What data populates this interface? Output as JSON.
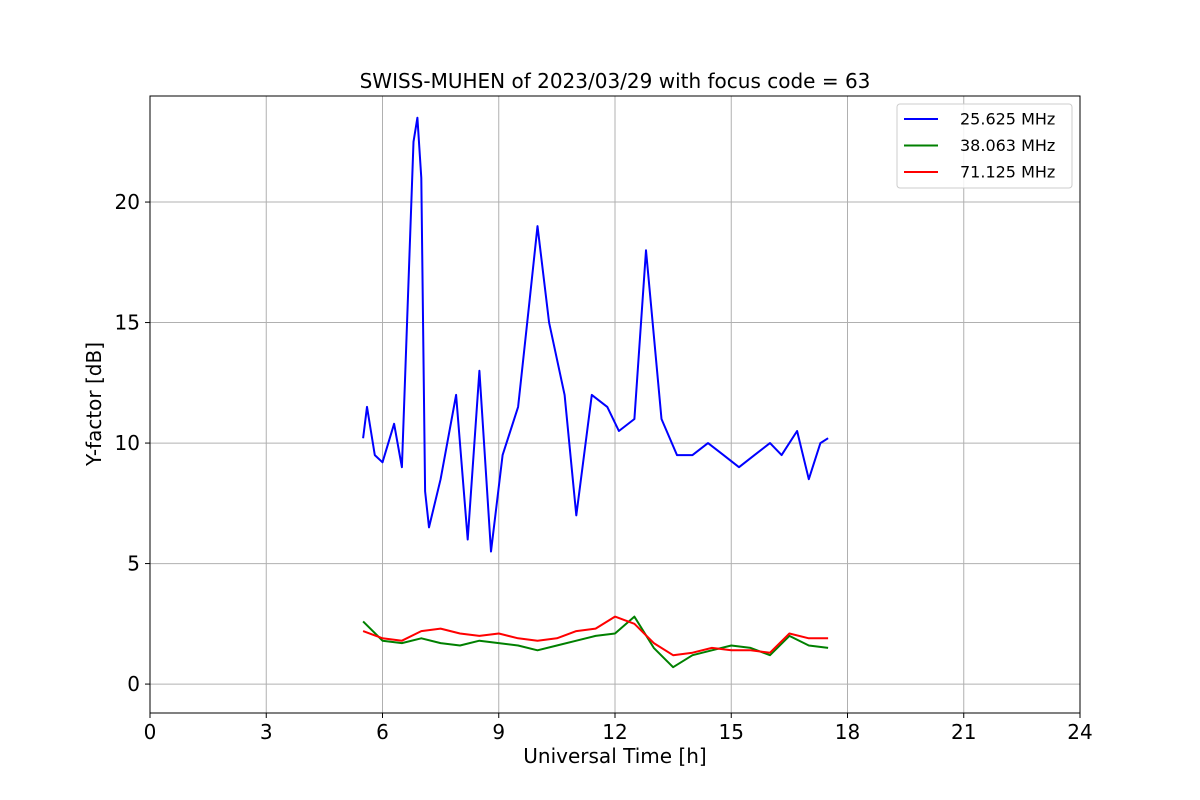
{
  "chart_data": {
    "type": "line",
    "title": "SWISS-MUHEN of 2023/03/29 with focus code = 63",
    "xlabel": "Universal Time [h]",
    "ylabel": "Y-factor [dB]",
    "xlim": [
      0,
      24
    ],
    "ylim": [
      -1.2,
      24.4
    ],
    "xticks": [
      0,
      3,
      6,
      9,
      12,
      15,
      18,
      21,
      24
    ],
    "yticks": [
      0,
      5,
      10,
      15,
      20
    ],
    "grid": true,
    "legend_position": "top-right",
    "series": [
      {
        "name": "25.625 MHz",
        "color": "#0000ff",
        "x": [
          5.5,
          5.6,
          5.8,
          6.0,
          6.3,
          6.5,
          6.8,
          6.9,
          7.0,
          7.1,
          7.2,
          7.5,
          7.9,
          8.2,
          8.5,
          8.8,
          9.1,
          9.5,
          9.8,
          10.0,
          10.3,
          10.7,
          11.0,
          11.4,
          11.8,
          12.1,
          12.5,
          12.8,
          13.2,
          13.6,
          14.0,
          14.4,
          14.8,
          15.2,
          15.6,
          16.0,
          16.3,
          16.7,
          17.0,
          17.3,
          17.5
        ],
        "y": [
          10.2,
          11.5,
          9.5,
          9.2,
          10.8,
          9.0,
          22.5,
          23.5,
          21.0,
          8.0,
          6.5,
          8.5,
          12.0,
          6.0,
          13.0,
          5.5,
          9.5,
          11.5,
          16.0,
          19.0,
          15.0,
          12.0,
          7.0,
          12.0,
          11.5,
          10.5,
          11.0,
          18.0,
          11.0,
          9.5,
          9.5,
          10.0,
          9.5,
          9.0,
          9.5,
          10.0,
          9.5,
          10.5,
          8.5,
          10.0,
          10.2
        ]
      },
      {
        "name": "38.063 MHz",
        "color": "#008000",
        "x": [
          5.5,
          6.0,
          6.5,
          7.0,
          7.5,
          8.0,
          8.5,
          9.0,
          9.5,
          10.0,
          10.5,
          11.0,
          11.5,
          12.0,
          12.5,
          13.0,
          13.5,
          14.0,
          14.5,
          15.0,
          15.5,
          16.0,
          16.5,
          17.0,
          17.5
        ],
        "y": [
          2.6,
          1.8,
          1.7,
          1.9,
          1.7,
          1.6,
          1.8,
          1.7,
          1.6,
          1.4,
          1.6,
          1.8,
          2.0,
          2.1,
          2.8,
          1.5,
          0.7,
          1.2,
          1.4,
          1.6,
          1.5,
          1.2,
          2.0,
          1.6,
          1.5
        ]
      },
      {
        "name": "71.125 MHz",
        "color": "#ff0000",
        "x": [
          5.5,
          6.0,
          6.5,
          7.0,
          7.5,
          8.0,
          8.5,
          9.0,
          9.5,
          10.0,
          10.5,
          11.0,
          11.5,
          12.0,
          12.5,
          13.0,
          13.5,
          14.0,
          14.5,
          15.0,
          15.5,
          16.0,
          16.5,
          17.0,
          17.5
        ],
        "y": [
          2.2,
          1.9,
          1.8,
          2.2,
          2.3,
          2.1,
          2.0,
          2.1,
          1.9,
          1.8,
          1.9,
          2.2,
          2.3,
          2.8,
          2.5,
          1.7,
          1.2,
          1.3,
          1.5,
          1.4,
          1.4,
          1.3,
          2.1,
          1.9,
          1.9
        ]
      }
    ]
  }
}
